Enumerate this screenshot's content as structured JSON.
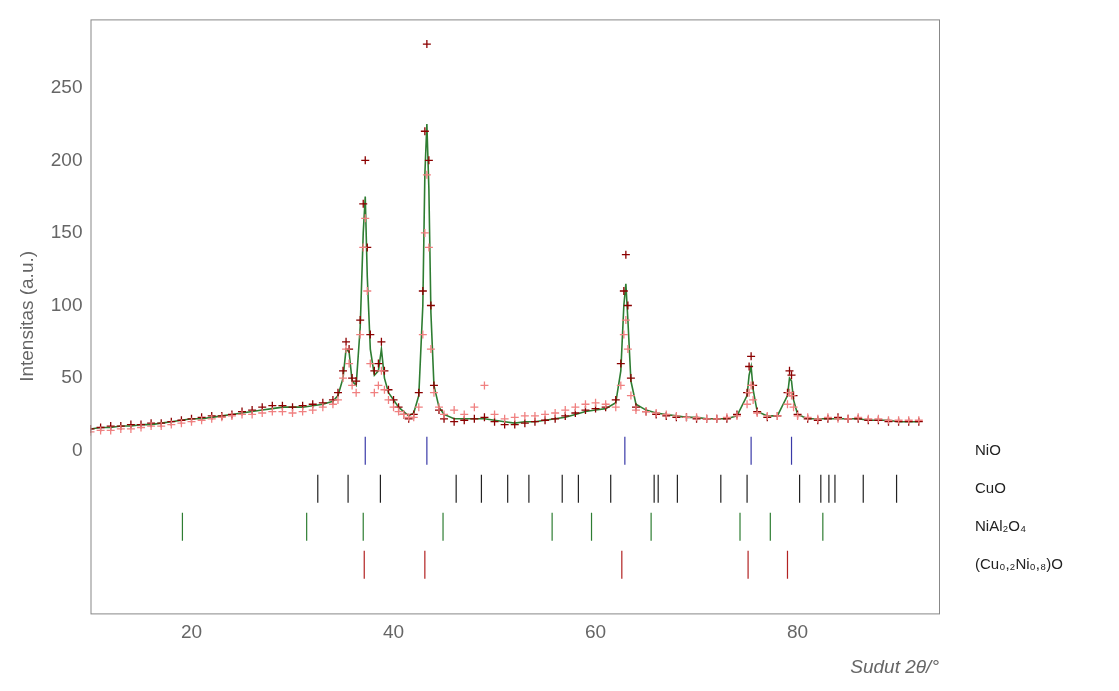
{
  "chart_data": {
    "type": "scatter",
    "x_label": "Sudut 2θ/°",
    "y_label": "Intensitas (a.u.)",
    "xlim": [
      10,
      94
    ],
    "xticks": [
      20,
      40,
      60,
      80
    ],
    "ylim": [
      -112,
      297
    ],
    "yticks": [
      0,
      50,
      100,
      150,
      200,
      250
    ],
    "grid": false,
    "x": [
      10,
      11,
      12,
      13,
      14,
      15,
      16,
      17,
      18,
      19,
      20,
      21,
      22,
      23,
      24,
      25,
      26,
      27,
      28,
      29,
      30,
      31,
      32,
      33,
      34,
      34.5,
      35,
      35.3,
      35.6,
      35.9,
      36.3,
      36.7,
      37.0,
      37.2,
      37.4,
      37.7,
      38.1,
      38.5,
      38.8,
      39.1,
      39.5,
      40,
      40.5,
      41,
      41.5,
      42,
      42.5,
      42.9,
      43.1,
      43.3,
      43.5,
      43.7,
      44,
      44.5,
      45,
      46,
      47,
      48,
      49,
      50,
      51,
      52,
      53,
      54,
      55,
      56,
      57,
      58,
      59,
      60,
      61,
      62,
      62.5,
      62.8,
      63.0,
      63.2,
      63.5,
      64,
      65,
      66,
      67,
      68,
      69,
      70,
      71,
      72,
      73,
      74,
      75,
      75.2,
      75.4,
      75.6,
      76,
      77,
      78,
      79,
      79.2,
      79.4,
      79.6,
      80,
      81,
      82,
      83,
      84,
      85,
      86,
      87,
      88,
      89,
      90,
      91,
      92
    ],
    "series": [
      {
        "color": "#f08080",
        "marker": "cross",
        "values": [
          13,
          14,
          14,
          15,
          15,
          16,
          17,
          17,
          18,
          19,
          20,
          21,
          22,
          23,
          24,
          25,
          25,
          26,
          27,
          27,
          26,
          27,
          28,
          30,
          32,
          35,
          50,
          70,
          60,
          45,
          40,
          80,
          140,
          160,
          110,
          60,
          40,
          45,
          55,
          42,
          35,
          30,
          27,
          25,
          23,
          23,
          30,
          80,
          150,
          190,
          140,
          70,
          40,
          30,
          25,
          28,
          25,
          30,
          45,
          25,
          22,
          23,
          24,
          24,
          25,
          26,
          28,
          30,
          32,
          33,
          32,
          30,
          45,
          80,
          90,
          70,
          38,
          28,
          27,
          26,
          25,
          24,
          23,
          23,
          22,
          22,
          23,
          24,
          32,
          40,
          45,
          35,
          26,
          24,
          24,
          32,
          40,
          38,
          30,
          24,
          23,
          22,
          23,
          22,
          22,
          23,
          22,
          22,
          21,
          21,
          21,
          21
        ]
      },
      {
        "color": "#8b0000",
        "marker": "cross",
        "values": [
          15,
          16,
          17,
          17,
          18,
          18,
          19,
          19,
          20,
          21,
          22,
          23,
          24,
          24,
          25,
          27,
          28,
          30,
          31,
          31,
          30,
          31,
          32,
          33,
          35,
          40,
          55,
          75,
          70,
          50,
          48,
          90,
          170,
          200,
          140,
          80,
          55,
          60,
          75,
          55,
          42,
          35,
          30,
          25,
          22,
          25,
          40,
          110,
          220,
          280,
          200,
          100,
          45,
          28,
          22,
          20,
          21,
          22,
          23,
          20,
          18,
          18,
          19,
          20,
          21,
          22,
          24,
          26,
          28,
          29,
          30,
          35,
          60,
          110,
          135,
          100,
          50,
          30,
          27,
          25,
          24,
          23,
          23,
          22,
          22,
          22,
          22,
          25,
          40,
          58,
          65,
          45,
          27,
          23,
          24,
          40,
          55,
          52,
          38,
          25,
          22,
          21,
          22,
          23,
          22,
          22,
          21,
          21,
          20,
          20,
          20,
          20
        ]
      },
      {
        "color": "#2e7d32",
        "type": "line",
        "values": [
          15,
          16,
          16,
          17,
          17,
          18,
          18,
          19,
          20,
          21,
          22,
          22,
          23,
          24,
          25,
          26,
          27,
          28,
          29,
          30,
          30,
          30,
          31,
          32,
          34,
          38,
          50,
          70,
          68,
          48,
          45,
          85,
          150,
          175,
          120,
          70,
          52,
          55,
          70,
          50,
          40,
          35,
          30,
          27,
          24,
          26,
          38,
          100,
          190,
          225,
          180,
          95,
          45,
          30,
          25,
          22,
          22,
          22,
          22,
          21,
          20,
          19,
          20,
          20,
          21,
          22,
          23,
          25,
          27,
          28,
          29,
          33,
          55,
          100,
          115,
          90,
          48,
          32,
          28,
          26,
          25,
          24,
          23,
          23,
          22,
          22,
          22,
          24,
          38,
          52,
          58,
          42,
          27,
          24,
          24,
          38,
          50,
          48,
          35,
          25,
          22,
          22,
          22,
          22,
          22,
          22,
          21,
          21,
          21,
          20,
          20,
          20
        ]
      }
    ],
    "phases": [
      {
        "name": "NiO",
        "color": "#3a3aa8",
        "positions": [
          37.2,
          43.3,
          62.9,
          75.4,
          79.4
        ]
      },
      {
        "name": "CuO",
        "color": "#222222",
        "positions": [
          32.5,
          35.5,
          38.7,
          46.2,
          48.7,
          51.3,
          53.4,
          56.7,
          58.3,
          61.5,
          65.8,
          66.2,
          68.1,
          72.4,
          75.0,
          80.2,
          82.3,
          83.1,
          83.7,
          86.5,
          89.8
        ]
      },
      {
        "name": "NiAl₂O₄",
        "color": "#2e7d32",
        "positions": [
          19.1,
          31.4,
          37.0,
          44.9,
          55.7,
          59.6,
          65.5,
          74.3,
          77.3,
          82.5
        ]
      },
      {
        "name": "(Cu₀,₂Ni₀,₈)O",
        "color": "#b22222",
        "positions": [
          37.1,
          43.1,
          62.6,
          75.1,
          79.0
        ]
      }
    ]
  }
}
